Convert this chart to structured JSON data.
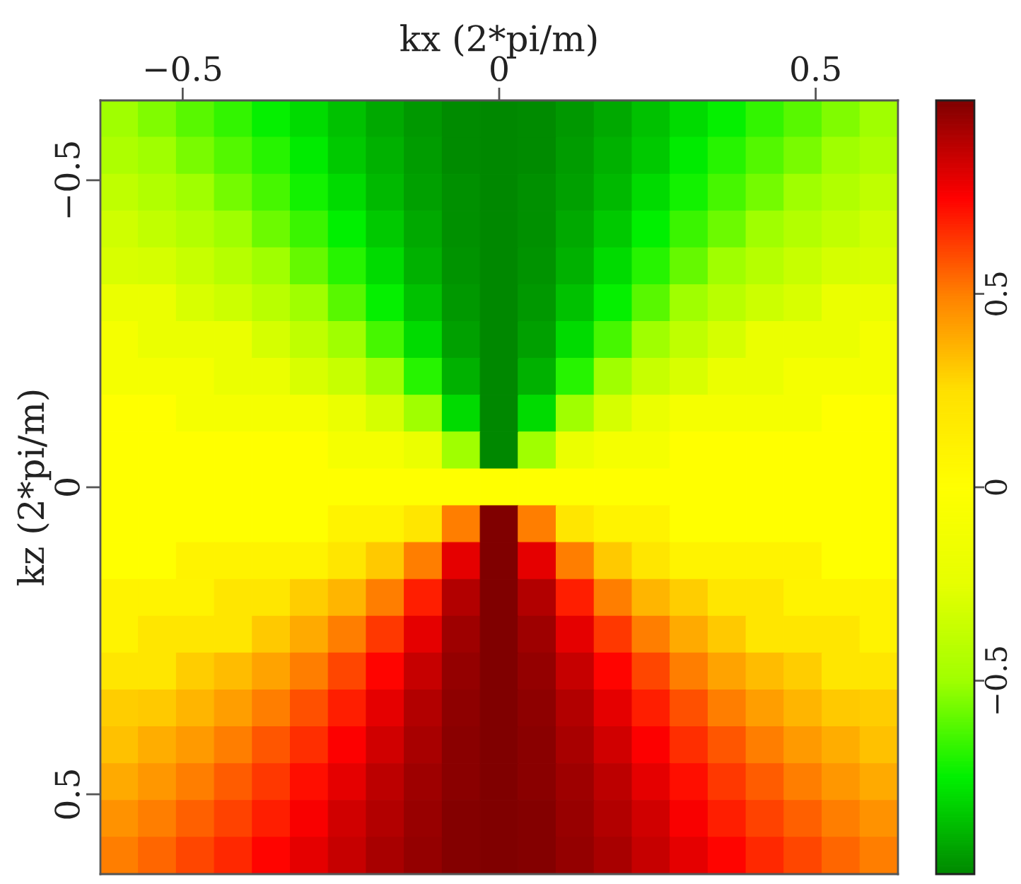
{
  "chart_data": {
    "type": "heatmap",
    "xlabel": "kx (2*pi/m)",
    "ylabel": "kz (2*pi/m)",
    "x": [
      -0.6,
      -0.54,
      -0.48,
      -0.42,
      -0.36,
      -0.3,
      -0.24,
      -0.18,
      -0.12,
      -0.06,
      0,
      0.06,
      0.12,
      0.18,
      0.24,
      0.3,
      0.36,
      0.42,
      0.48,
      0.54,
      0.6
    ],
    "cells": [
      [
        -0.5,
        -0.55,
        -0.61,
        -0.67,
        -0.74,
        -0.8,
        -0.86,
        -0.92,
        -0.96,
        -0.99,
        -1,
        -0.99,
        -0.96,
        -0.92,
        -0.86,
        -0.8,
        -0.74,
        -0.67,
        -0.61,
        -0.55,
        -0.5
      ],
      [
        -0.45,
        -0.5,
        -0.56,
        -0.62,
        -0.69,
        -0.76,
        -0.84,
        -0.9,
        -0.95,
        -0.99,
        -1,
        -0.99,
        -0.95,
        -0.9,
        -0.84,
        -0.76,
        -0.69,
        -0.62,
        -0.56,
        -0.5,
        -0.45
      ],
      [
        -0.39,
        -0.44,
        -0.5,
        -0.57,
        -0.64,
        -0.72,
        -0.8,
        -0.88,
        -0.94,
        -0.98,
        -1,
        -0.98,
        -0.94,
        -0.88,
        -0.8,
        -0.72,
        -0.64,
        -0.57,
        -0.5,
        -0.44,
        -0.39
      ],
      [
        -0.33,
        -0.38,
        -0.43,
        -0.5,
        -0.58,
        -0.66,
        -0.75,
        -0.84,
        -0.92,
        -0.98,
        -1,
        -0.98,
        -0.92,
        -0.84,
        -0.75,
        -0.66,
        -0.58,
        -0.5,
        -0.43,
        -0.38,
        -0.33
      ],
      [
        -0.3,
        -0.31,
        -0.36,
        -0.42,
        -0.5,
        -0.59,
        -0.69,
        -0.8,
        -0.9,
        -0.97,
        -1,
        -0.97,
        -0.9,
        -0.8,
        -0.69,
        -0.59,
        -0.5,
        -0.42,
        -0.36,
        -0.31,
        -0.3
      ],
      [
        -0.2,
        -0.2,
        -0.3,
        -0.34,
        -0.41,
        -0.5,
        -0.61,
        -0.74,
        -0.86,
        -0.96,
        -1,
        -0.96,
        -0.86,
        -0.74,
        -0.61,
        -0.5,
        -0.41,
        -0.34,
        -0.3,
        -0.2,
        -0.2
      ],
      [
        -0.1,
        -0.2,
        -0.2,
        -0.2,
        -0.31,
        -0.39,
        -0.5,
        -0.64,
        -0.8,
        -0.94,
        -1,
        -0.94,
        -0.8,
        -0.64,
        -0.5,
        -0.39,
        -0.31,
        -0.2,
        -0.2,
        -0.2,
        -0.1
      ],
      [
        -0.1,
        -0.1,
        -0.1,
        -0.2,
        -0.2,
        -0.3,
        -0.36,
        -0.5,
        -0.69,
        -0.9,
        -1,
        -0.9,
        -0.69,
        -0.5,
        -0.36,
        -0.3,
        -0.2,
        -0.2,
        -0.1,
        -0.1,
        -0.1
      ],
      [
        0,
        0,
        -0.1,
        -0.1,
        -0.1,
        -0.1,
        -0.2,
        -0.31,
        -0.5,
        -0.8,
        -1,
        -0.8,
        -0.5,
        -0.31,
        -0.2,
        -0.1,
        -0.1,
        -0.1,
        -0.1,
        0,
        0
      ],
      [
        0,
        0,
        0,
        0,
        0,
        0,
        -0.1,
        -0.1,
        -0.2,
        -0.5,
        -1,
        -0.5,
        -0.2,
        -0.1,
        -0.1,
        0,
        0,
        0,
        0,
        0,
        0
      ],
      [
        0,
        0,
        0,
        0,
        0,
        0,
        0,
        0,
        0,
        0,
        0,
        0,
        0,
        0,
        0,
        0,
        0,
        0,
        0,
        0,
        0
      ],
      [
        0,
        0,
        0,
        0,
        0,
        0,
        0.1,
        0.1,
        0.2,
        0.5,
        1,
        0.5,
        0.2,
        0.1,
        0.1,
        0,
        0,
        0,
        0,
        0,
        0
      ],
      [
        0,
        0,
        0.1,
        0.1,
        0.1,
        0.1,
        0.2,
        0.31,
        0.5,
        0.8,
        1,
        0.8,
        0.5,
        0.31,
        0.2,
        0.1,
        0.1,
        0.1,
        0.1,
        0,
        0
      ],
      [
        0.1,
        0.1,
        0.1,
        0.2,
        0.2,
        0.3,
        0.36,
        0.5,
        0.69,
        0.9,
        1,
        0.9,
        0.69,
        0.5,
        0.36,
        0.3,
        0.2,
        0.2,
        0.1,
        0.1,
        0.1
      ],
      [
        0.1,
        0.2,
        0.2,
        0.2,
        0.31,
        0.39,
        0.5,
        0.64,
        0.8,
        0.94,
        1,
        0.94,
        0.8,
        0.64,
        0.5,
        0.39,
        0.31,
        0.2,
        0.2,
        0.2,
        0.1
      ],
      [
        0.2,
        0.2,
        0.3,
        0.34,
        0.41,
        0.5,
        0.61,
        0.74,
        0.86,
        0.96,
        1,
        0.96,
        0.86,
        0.74,
        0.61,
        0.5,
        0.41,
        0.34,
        0.3,
        0.2,
        0.2
      ],
      [
        0.3,
        0.31,
        0.36,
        0.42,
        0.5,
        0.59,
        0.69,
        0.8,
        0.9,
        0.97,
        1,
        0.97,
        0.9,
        0.8,
        0.69,
        0.59,
        0.5,
        0.42,
        0.36,
        0.31,
        0.3
      ],
      [
        0.33,
        0.38,
        0.43,
        0.5,
        0.58,
        0.66,
        0.75,
        0.84,
        0.92,
        0.98,
        1,
        0.98,
        0.92,
        0.84,
        0.75,
        0.66,
        0.58,
        0.5,
        0.43,
        0.38,
        0.33
      ],
      [
        0.39,
        0.44,
        0.5,
        0.57,
        0.64,
        0.72,
        0.8,
        0.88,
        0.94,
        0.98,
        1,
        0.98,
        0.94,
        0.88,
        0.8,
        0.72,
        0.64,
        0.57,
        0.5,
        0.44,
        0.39
      ],
      [
        0.45,
        0.5,
        0.56,
        0.62,
        0.69,
        0.76,
        0.84,
        0.9,
        0.95,
        0.99,
        1,
        0.99,
        0.95,
        0.9,
        0.84,
        0.76,
        0.69,
        0.62,
        0.56,
        0.5,
        0.45
      ],
      [
        0.5,
        0.55,
        0.61,
        0.67,
        0.74,
        0.8,
        0.86,
        0.92,
        0.96,
        0.99,
        1,
        0.99,
        0.96,
        0.92,
        0.86,
        0.8,
        0.74,
        0.67,
        0.61,
        0.55,
        0.5
      ]
    ],
    "xlim": [
      -0.63,
      0.63
    ],
    "ylim": [
      0.63,
      -0.63
    ],
    "xticks": [
      {
        "value": -0.5,
        "label": "−0.5"
      },
      0,
      0.5
    ],
    "yticks": [
      {
        "value": -0.5,
        "label": "−0.5"
      },
      0,
      0.5
    ],
    "clim": [
      -1,
      1
    ],
    "cticks": [
      {
        "value": -0.5,
        "label": "−0.5"
      },
      0,
      0.5
    ],
    "colors": [
      "#008800",
      "#00f000",
      "#a0ff00",
      "#e6ff00",
      "#ffff00",
      "#ffe000",
      "#ff8000",
      "#ff0000",
      "#800000"
    ]
  }
}
